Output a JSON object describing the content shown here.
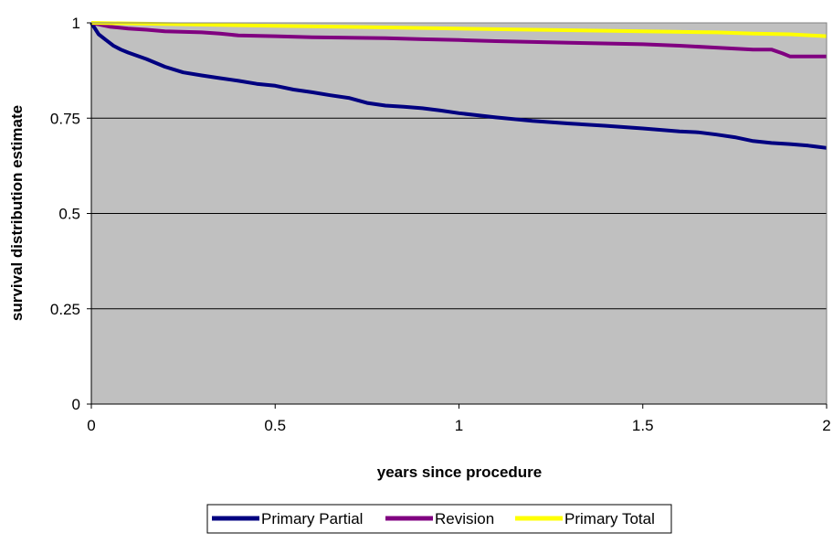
{
  "chart_data": {
    "type": "line",
    "title": "",
    "xlabel": "years since procedure",
    "ylabel": "survival distribution estimate",
    "xlim": [
      0,
      2
    ],
    "ylim": [
      0,
      1
    ],
    "x_ticks": [
      "0",
      "0.5",
      "1",
      "1.5",
      "2"
    ],
    "y_ticks": [
      "0",
      "0.25",
      "0.5",
      "0.75",
      "1"
    ],
    "grid": "horizontal",
    "plot_background": "#c0c0c0",
    "legend_position": "bottom",
    "series": [
      {
        "name": "Primary Partial",
        "color": "#000080",
        "x": [
          0,
          0.02,
          0.04,
          0.06,
          0.08,
          0.1,
          0.15,
          0.2,
          0.25,
          0.3,
          0.35,
          0.4,
          0.45,
          0.5,
          0.55,
          0.6,
          0.65,
          0.7,
          0.75,
          0.8,
          0.85,
          0.9,
          0.95,
          1.0,
          1.1,
          1.2,
          1.3,
          1.4,
          1.5,
          1.6,
          1.65,
          1.7,
          1.75,
          1.8,
          1.85,
          1.9,
          1.95,
          2.0
        ],
        "values": [
          1.0,
          0.97,
          0.955,
          0.94,
          0.93,
          0.922,
          0.905,
          0.885,
          0.87,
          0.862,
          0.855,
          0.848,
          0.84,
          0.835,
          0.825,
          0.818,
          0.81,
          0.803,
          0.79,
          0.783,
          0.78,
          0.776,
          0.77,
          0.763,
          0.752,
          0.743,
          0.736,
          0.73,
          0.723,
          0.715,
          0.713,
          0.707,
          0.7,
          0.69,
          0.685,
          0.682,
          0.678,
          0.672
        ]
      },
      {
        "name": "Revision",
        "color": "#800080",
        "x": [
          0,
          0.05,
          0.1,
          0.15,
          0.2,
          0.3,
          0.35,
          0.4,
          0.5,
          0.6,
          0.8,
          0.9,
          1.0,
          1.1,
          1.3,
          1.5,
          1.6,
          1.7,
          1.8,
          1.85,
          1.88,
          1.9,
          2.0
        ],
        "values": [
          1.0,
          0.99,
          0.985,
          0.982,
          0.978,
          0.975,
          0.972,
          0.967,
          0.965,
          0.962,
          0.96,
          0.957,
          0.955,
          0.952,
          0.948,
          0.944,
          0.94,
          0.935,
          0.93,
          0.93,
          0.92,
          0.912,
          0.912
        ]
      },
      {
        "name": "Primary Total",
        "color": "#ffff00",
        "x": [
          0,
          0.2,
          0.5,
          0.8,
          1.0,
          1.2,
          1.5,
          1.7,
          1.8,
          1.9,
          2.0
        ],
        "values": [
          1.0,
          0.997,
          0.992,
          0.988,
          0.985,
          0.982,
          0.978,
          0.975,
          0.972,
          0.97,
          0.965
        ]
      }
    ]
  }
}
